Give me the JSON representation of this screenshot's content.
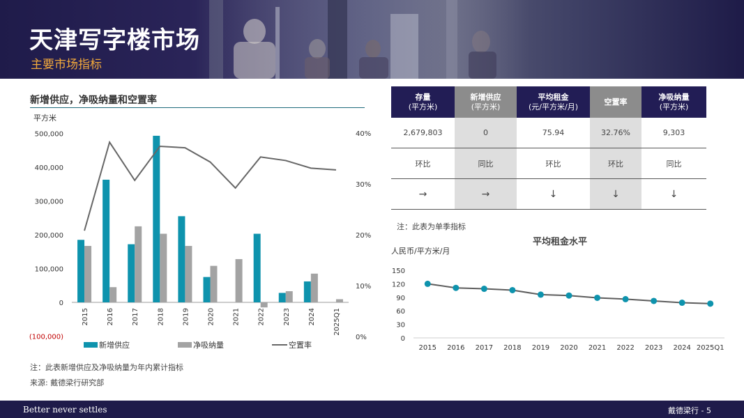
{
  "header": {
    "title": "天津写字楼市场",
    "subtitle": "主要市场指标"
  },
  "left_chart": {
    "title": "新增供应，净吸纳量和空置率",
    "unit_label": "平方米",
    "note": "注：此表新增供应及净吸纳量为年内累计指标",
    "source": "来源: 戴德梁行研究部"
  },
  "metrics_table": {
    "headers": [
      {
        "line1": "存量",
        "line2": "(平方米)"
      },
      {
        "line1": "新增供应",
        "line2": "(平方米)"
      },
      {
        "line1": "平均租金",
        "line2": "(元/平方米/月)"
      },
      {
        "line1": "空置率",
        "line2": ""
      },
      {
        "line1": "净吸纳量",
        "line2": "(平方米)"
      }
    ],
    "values": [
      "2,679,803",
      "0",
      "75.94",
      "32.76%",
      "9,303"
    ],
    "comparison": [
      "环比",
      "同比",
      "环比",
      "环比",
      "同比"
    ],
    "trend": [
      "→",
      "→",
      "↓",
      "↓",
      "↓"
    ],
    "note": "注：此表为单季指标"
  },
  "right_chart": {
    "title": "平均租金水平",
    "unit_label": "人民币/平方米/月"
  },
  "footer": {
    "tagline": "Better never settles",
    "page": "戴德梁行 - 5"
  },
  "colors": {
    "navy": "#221d55",
    "teal": "#0e93ad",
    "gray_bar": "#a3a3a3",
    "line": "#666666",
    "orange": "#f2a93b",
    "negative": "#c00000"
  },
  "chart_data": [
    {
      "type": "bar",
      "title": "新增供应，净吸纳量和空置率",
      "ylabel": "平方米",
      "categories": [
        "2015",
        "2016",
        "2017",
        "2018",
        "2019",
        "2020",
        "2021",
        "2022",
        "2023",
        "2024",
        "2025Q1"
      ],
      "ylim": [
        -100000,
        500000
      ],
      "yticks": [
        "(100,000)",
        "0",
        "100,000",
        "200,000",
        "300,000",
        "400,000",
        "500,000"
      ],
      "y2lim": [
        0,
        40
      ],
      "y2ticks": [
        "0%",
        "10%",
        "20%",
        "30%",
        "40%"
      ],
      "series": [
        {
          "name": "新增供应",
          "kind": "bar",
          "values": [
            185000,
            363000,
            172000,
            493000,
            255000,
            75000,
            0,
            203000,
            28000,
            62000,
            0
          ]
        },
        {
          "name": "净吸纳量",
          "kind": "bar",
          "values": [
            167000,
            45000,
            225000,
            203000,
            167000,
            108000,
            128000,
            -15000,
            33000,
            85000,
            9303
          ]
        },
        {
          "name": "空置率",
          "kind": "line",
          "axis": "secondary",
          "values": [
            20.8,
            38.2,
            30.7,
            37.4,
            37.1,
            34.3,
            29.2,
            35.3,
            34.6,
            33.1,
            32.76
          ]
        }
      ],
      "legend_position": "bottom"
    },
    {
      "type": "line",
      "title": "平均租金水平",
      "ylabel": "人民币/平方米/月",
      "categories": [
        "2015",
        "2016",
        "2017",
        "2018",
        "2019",
        "2020",
        "2021",
        "2022",
        "2023",
        "2024",
        "2025Q1"
      ],
      "ylim": [
        0,
        150
      ],
      "yticks": [
        "0",
        "30",
        "60",
        "90",
        "120",
        "150"
      ],
      "series": [
        {
          "name": "",
          "values": [
            120,
            111,
            109,
            106,
            96,
            94,
            89,
            86,
            82,
            78,
            76
          ]
        }
      ]
    }
  ]
}
